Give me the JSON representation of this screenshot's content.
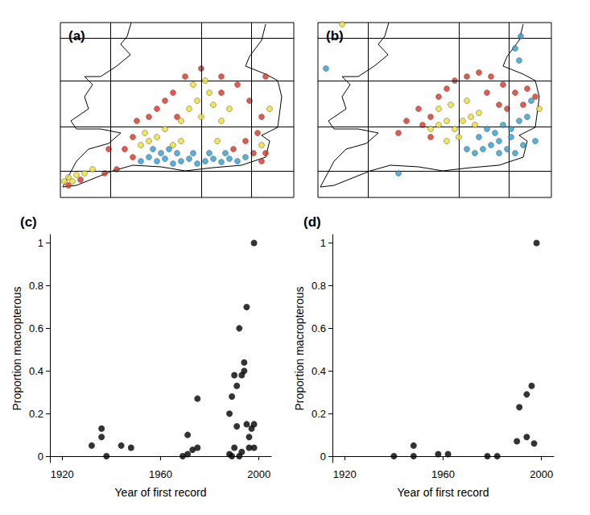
{
  "chart_data": [
    {
      "type": "scatter",
      "title": "(a)",
      "tick_labels": false,
      "grid": true,
      "xlim": [
        0,
        290
      ],
      "ylim": [
        0,
        217
      ],
      "xticks": [
        62,
        175,
        237
      ],
      "yticks": [
        33,
        88,
        145,
        198
      ],
      "series": [
        {
          "type": "line",
          "color": "#000000",
          "x": [
            88,
            83,
            75,
            87,
            70,
            50,
            30,
            40,
            30,
            35,
            13,
            20,
            50,
            75,
            60,
            35,
            20,
            3,
            20,
            45,
            65,
            90,
            125,
            155,
            190,
            225,
            255,
            260,
            250,
            270,
            275,
            270,
            255,
            230,
            235,
            250,
            255
          ],
          "values": [
            217,
            200,
            190,
            177,
            163,
            150,
            150,
            140,
            125,
            110,
            95,
            85,
            85,
            80,
            67,
            60,
            45,
            13,
            15,
            25,
            33,
            40,
            38,
            33,
            37,
            40,
            50,
            70,
            77,
            87,
            125,
            145,
            153,
            163,
            175,
            195,
            215
          ]
        },
        {
          "type": "scatter",
          "color": "#e0301e",
          "marker": "circle",
          "x": [
            10,
            25,
            55,
            70,
            60,
            80,
            90,
            95,
            110,
            120,
            130,
            140,
            155,
            175,
            200,
            220,
            235,
            250,
            245,
            230,
            215,
            240,
            250,
            255,
            200,
            145,
            90,
            255
          ],
          "values": [
            15,
            22,
            30,
            35,
            60,
            60,
            75,
            95,
            100,
            110,
            120,
            130,
            150,
            160,
            150,
            140,
            120,
            100,
            80,
            70,
            60,
            55,
            45,
            55,
            130,
            100,
            50,
            150
          ]
        },
        {
          "type": "scatter",
          "color": "#f2e030",
          "marker": "circle",
          "x": [
            5,
            10,
            15,
            20,
            30,
            40,
            100,
            110,
            105,
            120,
            130,
            150,
            160,
            170,
            175,
            185,
            190,
            165,
            180,
            200,
            210,
            150,
            140,
            195,
            250,
            260
          ],
          "values": [
            20,
            25,
            20,
            28,
            30,
            35,
            65,
            70,
            80,
            75,
            85,
            95,
            110,
            120,
            100,
            130,
            115,
            140,
            145,
            95,
            110,
            70,
            65,
            70,
            65,
            110
          ]
        },
        {
          "type": "scatter",
          "color": "#2a9fd6",
          "marker": "circle",
          "x": [
            100,
            110,
            120,
            130,
            140,
            150,
            160,
            170,
            180,
            190,
            200,
            210,
            220,
            230,
            125,
            145,
            165,
            185,
            205,
            115,
            135
          ],
          "values": [
            45,
            50,
            45,
            48,
            42,
            45,
            48,
            42,
            45,
            48,
            44,
            48,
            45,
            50,
            55,
            55,
            55,
            55,
            55,
            60,
            60
          ]
        }
      ]
    },
    {
      "type": "scatter",
      "title": "(b)",
      "tick_labels": false,
      "grid": true,
      "xlim": [
        0,
        290
      ],
      "ylim": [
        0,
        217
      ],
      "xticks": [
        62,
        175,
        237
      ],
      "yticks": [
        33,
        88,
        145,
        198
      ],
      "series": [
        {
          "type": "line",
          "color": "#000000",
          "x": [
            88,
            83,
            75,
            87,
            70,
            50,
            30,
            40,
            30,
            35,
            13,
            20,
            50,
            75,
            60,
            35,
            20,
            3,
            20,
            45,
            65,
            90,
            125,
            155,
            190,
            225,
            255,
            260,
            250,
            270,
            275,
            270,
            255,
            230,
            235,
            250,
            255
          ],
          "values": [
            217,
            200,
            190,
            177,
            163,
            150,
            150,
            140,
            125,
            110,
            95,
            85,
            85,
            80,
            67,
            60,
            45,
            13,
            15,
            25,
            33,
            40,
            38,
            33,
            37,
            40,
            50,
            70,
            77,
            87,
            125,
            145,
            153,
            163,
            175,
            195,
            215
          ]
        },
        {
          "type": "scatter",
          "color": "#e0301e",
          "marker": "circle",
          "x": [
            130,
            140,
            150,
            160,
            170,
            185,
            200,
            215,
            230,
            245,
            260,
            270,
            210,
            225,
            235,
            140,
            125,
            100,
            110,
            255
          ],
          "values": [
            90,
            100,
            125,
            135,
            145,
            150,
            155,
            150,
            140,
            130,
            135,
            125,
            130,
            115,
            110,
            75,
            110,
            80,
            95,
            115
          ]
        },
        {
          "type": "scatter",
          "color": "#f2e030",
          "marker": "circle",
          "x": [
            140,
            150,
            160,
            170,
            180,
            190,
            200,
            150,
            165,
            185,
            195,
            175,
            160,
            275,
            30
          ],
          "values": [
            85,
            90,
            95,
            85,
            95,
            100,
            105,
            110,
            115,
            120,
            90,
            75,
            70,
            110,
            215
          ]
        },
        {
          "type": "scatter",
          "color": "#2a9fd6",
          "marker": "circle",
          "x": [
            185,
            195,
            205,
            215,
            225,
            235,
            245,
            255,
            200,
            210,
            220,
            230,
            240,
            250,
            260,
            265,
            240,
            225,
            250,
            245,
            252,
            10,
            100,
            270
          ],
          "values": [
            60,
            55,
            60,
            65,
            55,
            60,
            55,
            65,
            75,
            85,
            80,
            90,
            85,
            95,
            100,
            120,
            75,
            70,
            170,
            185,
            200,
            160,
            30,
            70
          ]
        }
      ]
    },
    {
      "type": "scatter",
      "title": "(c)",
      "grid": false,
      "color": "#000000",
      "marker": "circle",
      "x_label": "Year of first record",
      "y_label": "Proportion macropterous",
      "xlim": [
        1915,
        2005
      ],
      "ylim": [
        -0.03,
        1.04
      ],
      "xticks": [
        1920,
        1960,
        2000
      ],
      "yticks": [
        0,
        0.2,
        0.4,
        0.6,
        0.8,
        1
      ],
      "x": [
        1932,
        1936,
        1936,
        1938,
        1944,
        1948,
        1969,
        1971,
        1971,
        1973,
        1975,
        1975,
        1988,
        1988,
        1989,
        1990,
        1991,
        1991,
        1992,
        1993,
        1993,
        1994,
        1994,
        1995,
        1995,
        1996,
        1996,
        1997,
        1998,
        1998,
        1998,
        1990,
        1989,
        1992
      ],
      "values": [
        0.05,
        0.13,
        0.09,
        0,
        0.05,
        0.04,
        0,
        0.01,
        0.1,
        0.03,
        0.04,
        0.27,
        0.01,
        0.2,
        0.28,
        0.38,
        0.33,
        0.14,
        0.6,
        0.38,
        0.02,
        0.44,
        0.4,
        0.7,
        0.15,
        0.04,
        0.09,
        0.13,
        1,
        0.15,
        0.04,
        0.04,
        0,
        0
      ]
    },
    {
      "type": "scatter",
      "title": "(d)",
      "grid": false,
      "color": "#000000",
      "marker": "circle",
      "x_label": "Year of first record",
      "y_label": "Proportion macropterous",
      "xlim": [
        1915,
        2005
      ],
      "ylim": [
        -0.03,
        1.04
      ],
      "xticks": [
        1920,
        1960,
        2000
      ],
      "yticks": [
        0,
        0.2,
        0.4,
        0.6,
        0.8,
        1
      ],
      "x": [
        1940,
        1948,
        1948,
        1958,
        1962,
        1978,
        1982,
        1990,
        1991,
        1994,
        1994,
        1996,
        1997,
        1998
      ],
      "values": [
        0,
        0,
        0.05,
        0.01,
        0.01,
        0,
        0,
        0.07,
        0.23,
        0.29,
        0.09,
        0.33,
        0.06,
        1
      ]
    }
  ]
}
